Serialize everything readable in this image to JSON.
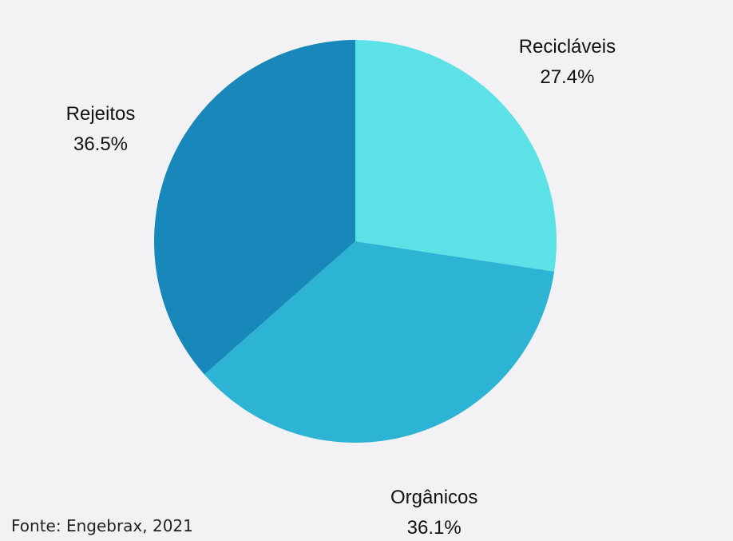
{
  "chart_data": {
    "type": "pie",
    "categories": [
      "Recicláveis",
      "Orgânicos",
      "Rejeitos"
    ],
    "values": [
      27.4,
      36.1,
      36.5
    ],
    "value_labels": [
      "27.4%",
      "36.1%",
      "36.5%"
    ],
    "colors": [
      "#5ce1e6",
      "#2db3d3",
      "#1887b9"
    ],
    "start": "top",
    "direction": "clockwise",
    "legend": "none"
  },
  "footer": {
    "source": "Fonte: Engebrax, 2021"
  }
}
